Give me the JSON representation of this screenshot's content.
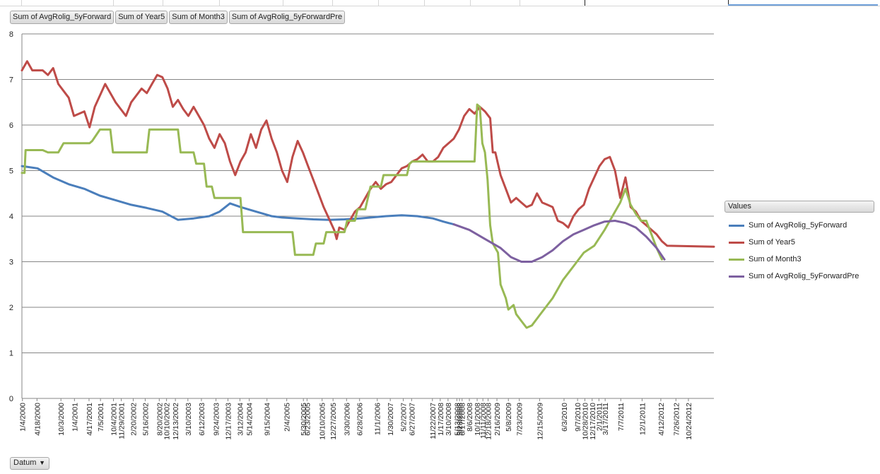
{
  "field_buttons": [
    "Sum of AvgRolig_5yForward",
    "Sum of Year5",
    "Sum of Month3",
    "Sum of AvgRolig_5yForwardPre"
  ],
  "axis_field_button": "Datum",
  "legend": {
    "title": "Values",
    "items": [
      "Sum of AvgRolig_5yForward",
      "Sum of Year5",
      "Sum of Month3",
      "Sum of AvgRolig_5yForwardPre"
    ]
  },
  "chart_data": {
    "type": "line",
    "ylim": [
      0,
      8
    ],
    "yticks": [
      "0",
      "1",
      "2",
      "3",
      "4",
      "5",
      "6",
      "7",
      "8"
    ],
    "xlim": [
      2000.0,
      2013.3
    ],
    "grid": true,
    "legend_position": "right",
    "categories": [
      "1/4/2000",
      "4/18/2000",
      "10/3/2000",
      "1/4/2001",
      "4/17/2001",
      "7/5/2001",
      "10/4/2001",
      "11/29/2001",
      "2/20/2002",
      "5/16/2002",
      "8/20/2002",
      "10/10/2002",
      "12/13/2002",
      "3/10/2003",
      "6/12/2003",
      "9/24/2003",
      "12/17/2003",
      "3/12/2004",
      "5/14/2004",
      "9/15/2004",
      "2/4/2005",
      "5/30/2005",
      "6/23/2005",
      "10/10/2005",
      "12/27/2005",
      "3/30/2006",
      "6/28/2006",
      "11/1/2006",
      "1/30/2007",
      "5/2/2007",
      "6/27/2007",
      "11/22/2007",
      "1/17/2008",
      "3/10/2008",
      "5/13/2008",
      "5/28/2008",
      "6/17/2008",
      "8/6/2008",
      "10/1/2008",
      "11/11/2008",
      "12/18/2008",
      "2/16/2009",
      "5/8/2009",
      "7/23/2009",
      "12/15/2009",
      "6/3/2010",
      "9/7/2010",
      "10/28/2010",
      "12/17/2010",
      "2/1/2011",
      "3/17/2011",
      "7/7/2011",
      "12/1/2011",
      "4/12/2012",
      "7/26/2012",
      "10/24/2012"
    ],
    "category_pos": [
      2000.01,
      2000.29,
      2000.75,
      2001.01,
      2001.29,
      2001.51,
      2001.76,
      2001.91,
      2002.14,
      2002.37,
      2002.64,
      2002.78,
      2002.95,
      2003.19,
      2003.45,
      2003.73,
      2003.96,
      2004.19,
      2004.37,
      2004.71,
      2005.09,
      2005.41,
      2005.48,
      2005.77,
      2005.98,
      2006.24,
      2006.49,
      2006.83,
      2007.08,
      2007.33,
      2007.49,
      2007.89,
      2008.04,
      2008.19,
      2008.36,
      2008.41,
      2008.46,
      2008.6,
      2008.75,
      2008.86,
      2008.96,
      2009.13,
      2009.35,
      2009.56,
      2009.95,
      2010.42,
      2010.68,
      2010.82,
      2010.96,
      2011.09,
      2011.21,
      2011.51,
      2011.92,
      2012.28,
      2012.57,
      2012.81
    ],
    "series": [
      {
        "name": "Sum of AvgRolig_5yForward",
        "color": "#4a7ebb",
        "points": [
          [
            2000.0,
            5.1
          ],
          [
            2000.3,
            5.05
          ],
          [
            2000.6,
            4.85
          ],
          [
            2000.9,
            4.7
          ],
          [
            2001.2,
            4.6
          ],
          [
            2001.5,
            4.45
          ],
          [
            2001.8,
            4.35
          ],
          [
            2002.1,
            4.25
          ],
          [
            2002.4,
            4.18
          ],
          [
            2002.7,
            4.1
          ],
          [
            2003.0,
            3.92
          ],
          [
            2003.3,
            3.95
          ],
          [
            2003.6,
            4.0
          ],
          [
            2003.8,
            4.1
          ],
          [
            2004.0,
            4.28
          ],
          [
            2004.2,
            4.2
          ],
          [
            2004.5,
            4.1
          ],
          [
            2004.8,
            4.0
          ],
          [
            2005.0,
            3.97
          ],
          [
            2005.3,
            3.95
          ],
          [
            2005.6,
            3.93
          ],
          [
            2005.9,
            3.92
          ],
          [
            2006.2,
            3.93
          ],
          [
            2006.5,
            3.95
          ],
          [
            2006.8,
            3.98
          ],
          [
            2007.0,
            4.0
          ],
          [
            2007.3,
            4.02
          ],
          [
            2007.6,
            4.0
          ],
          [
            2007.9,
            3.95
          ],
          [
            2008.1,
            3.88
          ],
          [
            2008.3,
            3.82
          ]
        ]
      },
      {
        "name": "Sum of Year5",
        "color": "#be4b48",
        "points": [
          [
            2000.0,
            7.2
          ],
          [
            2000.1,
            7.4
          ],
          [
            2000.2,
            7.2
          ],
          [
            2000.4,
            7.2
          ],
          [
            2000.5,
            7.1
          ],
          [
            2000.6,
            7.25
          ],
          [
            2000.7,
            6.9
          ],
          [
            2000.9,
            6.6
          ],
          [
            2001.0,
            6.2
          ],
          [
            2001.2,
            6.3
          ],
          [
            2001.3,
            5.95
          ],
          [
            2001.4,
            6.4
          ],
          [
            2001.6,
            6.9
          ],
          [
            2001.7,
            6.7
          ],
          [
            2001.8,
            6.5
          ],
          [
            2002.0,
            6.2
          ],
          [
            2002.1,
            6.5
          ],
          [
            2002.3,
            6.8
          ],
          [
            2002.4,
            6.7
          ],
          [
            2002.5,
            6.9
          ],
          [
            2002.6,
            7.1
          ],
          [
            2002.7,
            7.05
          ],
          [
            2002.8,
            6.8
          ],
          [
            2002.9,
            6.4
          ],
          [
            2003.0,
            6.55
          ],
          [
            2003.1,
            6.35
          ],
          [
            2003.2,
            6.2
          ],
          [
            2003.3,
            6.4
          ],
          [
            2003.4,
            6.2
          ],
          [
            2003.5,
            6.0
          ],
          [
            2003.6,
            5.7
          ],
          [
            2003.7,
            5.5
          ],
          [
            2003.8,
            5.8
          ],
          [
            2003.9,
            5.6
          ],
          [
            2004.0,
            5.2
          ],
          [
            2004.1,
            4.9
          ],
          [
            2004.2,
            5.2
          ],
          [
            2004.3,
            5.4
          ],
          [
            2004.4,
            5.8
          ],
          [
            2004.5,
            5.5
          ],
          [
            2004.6,
            5.9
          ],
          [
            2004.7,
            6.1
          ],
          [
            2004.8,
            5.7
          ],
          [
            2004.9,
            5.4
          ],
          [
            2005.0,
            5.0
          ],
          [
            2005.1,
            4.75
          ],
          [
            2005.2,
            5.3
          ],
          [
            2005.3,
            5.65
          ],
          [
            2005.4,
            5.4
          ],
          [
            2005.5,
            5.1
          ],
          [
            2005.6,
            4.8
          ],
          [
            2005.7,
            4.5
          ],
          [
            2005.8,
            4.2
          ],
          [
            2005.9,
            3.95
          ],
          [
            2006.0,
            3.7
          ],
          [
            2006.05,
            3.5
          ],
          [
            2006.1,
            3.75
          ],
          [
            2006.2,
            3.7
          ],
          [
            2006.3,
            3.9
          ],
          [
            2006.4,
            4.1
          ],
          [
            2006.5,
            4.2
          ],
          [
            2006.6,
            4.4
          ],
          [
            2006.7,
            4.6
          ],
          [
            2006.8,
            4.75
          ],
          [
            2006.9,
            4.6
          ],
          [
            2007.0,
            4.7
          ],
          [
            2007.1,
            4.75
          ],
          [
            2007.2,
            4.9
          ],
          [
            2007.3,
            5.05
          ],
          [
            2007.4,
            5.1
          ],
          [
            2007.5,
            5.2
          ],
          [
            2007.6,
            5.25
          ],
          [
            2007.7,
            5.35
          ],
          [
            2007.8,
            5.2
          ],
          [
            2007.9,
            5.2
          ],
          [
            2008.0,
            5.3
          ],
          [
            2008.1,
            5.5
          ],
          [
            2008.2,
            5.6
          ],
          [
            2008.3,
            5.7
          ],
          [
            2008.4,
            5.9
          ],
          [
            2008.5,
            6.2
          ],
          [
            2008.6,
            6.35
          ],
          [
            2008.7,
            6.25
          ],
          [
            2008.8,
            6.4
          ],
          [
            2008.9,
            6.3
          ],
          [
            2009.0,
            6.15
          ],
          [
            2009.05,
            5.4
          ],
          [
            2009.1,
            5.4
          ],
          [
            2009.2,
            4.9
          ],
          [
            2009.3,
            4.6
          ],
          [
            2009.4,
            4.3
          ],
          [
            2009.5,
            4.4
          ],
          [
            2009.6,
            4.3
          ],
          [
            2009.7,
            4.2
          ],
          [
            2009.8,
            4.25
          ],
          [
            2009.9,
            4.5
          ],
          [
            2010.0,
            4.3
          ],
          [
            2010.1,
            4.25
          ],
          [
            2010.2,
            4.2
          ],
          [
            2010.3,
            3.9
          ],
          [
            2010.4,
            3.85
          ],
          [
            2010.5,
            3.75
          ],
          [
            2010.6,
            4.0
          ],
          [
            2010.7,
            4.15
          ],
          [
            2010.8,
            4.25
          ],
          [
            2010.9,
            4.6
          ],
          [
            2011.0,
            4.85
          ],
          [
            2011.1,
            5.1
          ],
          [
            2011.2,
            5.25
          ],
          [
            2011.3,
            5.3
          ],
          [
            2011.4,
            5.0
          ],
          [
            2011.5,
            4.4
          ],
          [
            2011.6,
            4.85
          ],
          [
            2011.7,
            4.2
          ],
          [
            2011.8,
            4.1
          ],
          [
            2011.9,
            3.9
          ],
          [
            2012.0,
            3.8
          ],
          [
            2012.1,
            3.7
          ],
          [
            2012.2,
            3.6
          ],
          [
            2012.3,
            3.45
          ],
          [
            2012.4,
            3.35
          ],
          [
            2013.3,
            3.33
          ]
        ]
      },
      {
        "name": "Sum of Month3",
        "color": "#98b954",
        "points": [
          [
            2000.0,
            4.95
          ],
          [
            2000.05,
            4.95
          ],
          [
            2000.07,
            5.45
          ],
          [
            2000.4,
            5.45
          ],
          [
            2000.5,
            5.4
          ],
          [
            2000.7,
            5.4
          ],
          [
            2000.8,
            5.6
          ],
          [
            2001.3,
            5.6
          ],
          [
            2001.35,
            5.65
          ],
          [
            2001.5,
            5.9
          ],
          [
            2001.7,
            5.9
          ],
          [
            2001.75,
            5.4
          ],
          [
            2002.4,
            5.4
          ],
          [
            2002.45,
            5.9
          ],
          [
            2003.0,
            5.9
          ],
          [
            2003.05,
            5.4
          ],
          [
            2003.3,
            5.4
          ],
          [
            2003.35,
            5.15
          ],
          [
            2003.5,
            5.15
          ],
          [
            2003.55,
            4.65
          ],
          [
            2003.65,
            4.65
          ],
          [
            2003.7,
            4.4
          ],
          [
            2004.2,
            4.4
          ],
          [
            2004.25,
            3.65
          ],
          [
            2005.2,
            3.65
          ],
          [
            2005.25,
            3.15
          ],
          [
            2005.6,
            3.15
          ],
          [
            2005.65,
            3.4
          ],
          [
            2005.8,
            3.4
          ],
          [
            2005.85,
            3.65
          ],
          [
            2006.2,
            3.65
          ],
          [
            2006.25,
            3.9
          ],
          [
            2006.4,
            3.9
          ],
          [
            2006.45,
            4.15
          ],
          [
            2006.6,
            4.15
          ],
          [
            2006.7,
            4.65
          ],
          [
            2006.9,
            4.65
          ],
          [
            2006.95,
            4.9
          ],
          [
            2007.4,
            4.9
          ],
          [
            2007.45,
            5.15
          ],
          [
            2007.5,
            5.2
          ],
          [
            2008.7,
            5.2
          ],
          [
            2008.75,
            6.45
          ],
          [
            2008.8,
            6.4
          ],
          [
            2008.85,
            5.6
          ],
          [
            2008.9,
            5.4
          ],
          [
            2008.95,
            4.8
          ],
          [
            2009.0,
            3.8
          ],
          [
            2009.05,
            3.4
          ],
          [
            2009.1,
            3.3
          ],
          [
            2009.15,
            3.2
          ],
          [
            2009.2,
            2.5
          ],
          [
            2009.3,
            2.2
          ],
          [
            2009.35,
            1.95
          ],
          [
            2009.45,
            2.05
          ],
          [
            2009.5,
            1.85
          ],
          [
            2009.6,
            1.7
          ],
          [
            2009.7,
            1.55
          ],
          [
            2009.8,
            1.6
          ],
          [
            2009.9,
            1.75
          ],
          [
            2010.0,
            1.9
          ],
          [
            2010.2,
            2.2
          ],
          [
            2010.4,
            2.6
          ],
          [
            2010.6,
            2.9
          ],
          [
            2010.8,
            3.2
          ],
          [
            2011.0,
            3.35
          ],
          [
            2011.2,
            3.7
          ],
          [
            2011.35,
            4.0
          ],
          [
            2011.5,
            4.3
          ],
          [
            2011.6,
            4.6
          ],
          [
            2011.7,
            4.25
          ],
          [
            2011.8,
            4.05
          ],
          [
            2011.9,
            3.9
          ],
          [
            2012.0,
            3.9
          ],
          [
            2012.1,
            3.6
          ],
          [
            2012.2,
            3.3
          ],
          [
            2012.3,
            3.05
          ]
        ]
      },
      {
        "name": "Sum of AvgRolig_5yForwardPre",
        "color": "#7d60a0",
        "points": [
          [
            2008.3,
            3.82
          ],
          [
            2008.6,
            3.7
          ],
          [
            2008.9,
            3.5
          ],
          [
            2009.2,
            3.3
          ],
          [
            2009.4,
            3.1
          ],
          [
            2009.6,
            3.0
          ],
          [
            2009.8,
            3.0
          ],
          [
            2010.0,
            3.1
          ],
          [
            2010.2,
            3.25
          ],
          [
            2010.4,
            3.45
          ],
          [
            2010.6,
            3.6
          ],
          [
            2010.8,
            3.7
          ],
          [
            2011.0,
            3.8
          ],
          [
            2011.2,
            3.88
          ],
          [
            2011.4,
            3.9
          ],
          [
            2011.6,
            3.85
          ],
          [
            2011.8,
            3.75
          ],
          [
            2012.0,
            3.55
          ],
          [
            2012.2,
            3.3
          ],
          [
            2012.35,
            3.05
          ]
        ]
      }
    ]
  }
}
